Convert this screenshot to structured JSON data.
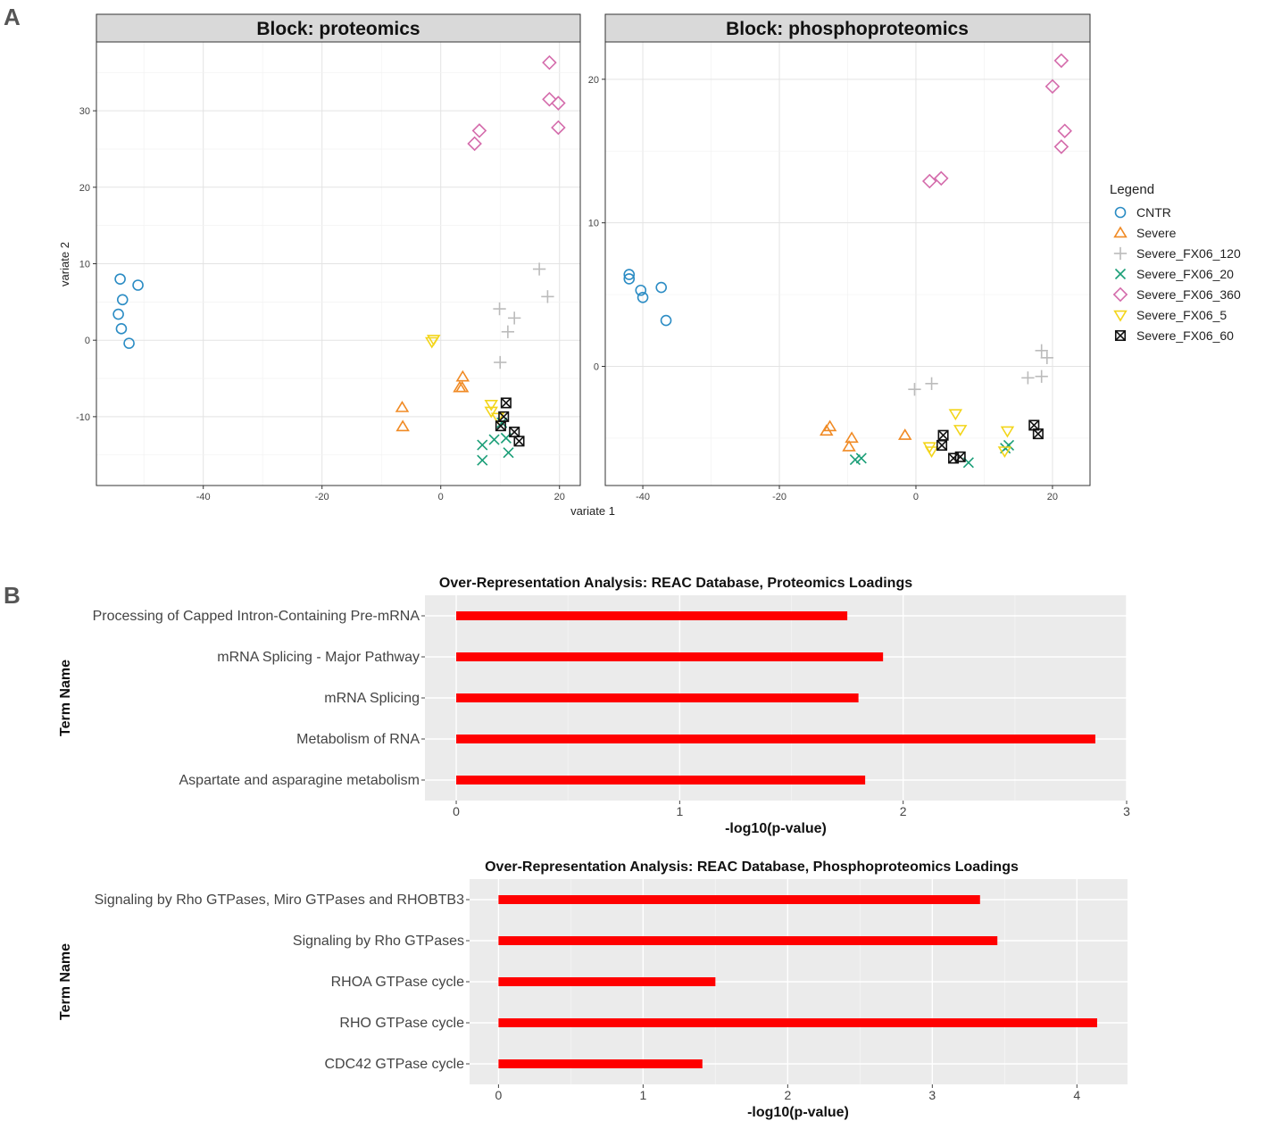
{
  "panel_labels": {
    "a": "A",
    "b": "B"
  },
  "chart_data": [
    {
      "type": "scatter",
      "title": "Block: proteomics",
      "xlabel": "variate 1",
      "ylabel": "variate 2",
      "xlim": [
        -58,
        23.5
      ],
      "ylim": [
        -19,
        39
      ],
      "xticks": [
        -40,
        -20,
        0,
        20
      ],
      "yticks": [
        -10,
        0,
        10,
        20,
        30
      ],
      "series": [
        {
          "name": "CNTR",
          "color": "#2b8cc4",
          "shape": "circle",
          "points": [
            [
              -54,
              8
            ],
            [
              -51,
              7.2
            ],
            [
              -53.6,
              5.3
            ],
            [
              -54.3,
              3.4
            ],
            [
              -53.8,
              1.5
            ],
            [
              -52.5,
              -0.4
            ]
          ]
        },
        {
          "name": "Severe",
          "color": "#f08a24",
          "shape": "triangle-up",
          "points": [
            [
              -6.5,
              -8.8
            ],
            [
              -6.4,
              -11.3
            ],
            [
              3.7,
              -4.8
            ],
            [
              3.2,
              -6.2
            ],
            [
              3.6,
              -6.2
            ]
          ]
        },
        {
          "name": "Severe_FX06_120",
          "color": "#bbbbbb",
          "shape": "plus",
          "points": [
            [
              16.6,
              9.3
            ],
            [
              18,
              5.7
            ],
            [
              9.9,
              4.1
            ],
            [
              12.4,
              2.9
            ],
            [
              11.3,
              1.1
            ],
            [
              10,
              -2.9
            ]
          ]
        },
        {
          "name": "Severe_FX06_20",
          "color": "#1a9e77",
          "shape": "cross",
          "points": [
            [
              7,
              -13.7
            ],
            [
              9,
              -13
            ],
            [
              7,
              -15.7
            ],
            [
              11,
              -12.8
            ],
            [
              11.4,
              -14.7
            ],
            [
              10.3,
              -10.8
            ]
          ]
        },
        {
          "name": "Severe_FX06_360",
          "color": "#d46bab",
          "shape": "diamond",
          "points": [
            [
              18.3,
              36.3
            ],
            [
              18.3,
              31.5
            ],
            [
              19.8,
              31
            ],
            [
              19.8,
              27.8
            ],
            [
              6.5,
              27.4
            ],
            [
              5.7,
              25.7
            ]
          ]
        },
        {
          "name": "Severe_FX06_5",
          "color": "#f3d51a",
          "shape": "triangle-down",
          "points": [
            [
              -1.5,
              -0.2
            ],
            [
              -1.2,
              0.1
            ],
            [
              8.5,
              -8.4
            ],
            [
              8.5,
              -9.3
            ],
            [
              9.6,
              -10.1
            ]
          ]
        },
        {
          "name": "Severe_FX06_60",
          "color": "#111111",
          "shape": "square-x",
          "points": [
            [
              11,
              -8.2
            ],
            [
              10.6,
              -10
            ],
            [
              10.1,
              -11.2
            ],
            [
              12.4,
              -12
            ],
            [
              13.2,
              -13.2
            ]
          ]
        }
      ]
    },
    {
      "type": "scatter",
      "title": "Block: phosphoproteomics",
      "xlabel": "variate 1",
      "ylabel": "variate 2",
      "xlim": [
        -45.5,
        25.5
      ],
      "ylim": [
        -8.3,
        22.6
      ],
      "xticks": [
        -40,
        -20,
        0,
        20
      ],
      "yticks": [
        0,
        10,
        20
      ],
      "series": [
        {
          "name": "CNTR",
          "color": "#2b8cc4",
          "shape": "circle",
          "points": [
            [
              -42,
              6.4
            ],
            [
              -42,
              6.1
            ],
            [
              -40.3,
              5.3
            ],
            [
              -40,
              4.8
            ],
            [
              -37.3,
              5.5
            ],
            [
              -36.6,
              3.2
            ]
          ]
        },
        {
          "name": "Severe",
          "color": "#f08a24",
          "shape": "triangle-up",
          "points": [
            [
              -12.6,
              -4.2
            ],
            [
              -13.1,
              -4.5
            ],
            [
              -9.4,
              -5
            ],
            [
              -9.8,
              -5.6
            ],
            [
              -1.6,
              -4.8
            ]
          ]
        },
        {
          "name": "Severe_FX06_120",
          "color": "#bbbbbb",
          "shape": "plus",
          "points": [
            [
              18.4,
              1.1
            ],
            [
              19.2,
              0.6
            ],
            [
              -0.2,
              -1.6
            ],
            [
              2.3,
              -1.2
            ],
            [
              16.4,
              -0.8
            ],
            [
              18.4,
              -0.7
            ]
          ]
        },
        {
          "name": "Severe_FX06_20",
          "color": "#1a9e77",
          "shape": "cross",
          "points": [
            [
              -8.9,
              -6.5
            ],
            [
              -8,
              -6.4
            ],
            [
              7.7,
              -6.7
            ],
            [
              13.1,
              -5.7
            ],
            [
              13.6,
              -5.5
            ]
          ]
        },
        {
          "name": "Severe_FX06_360",
          "color": "#d46bab",
          "shape": "diamond",
          "points": [
            [
              21.3,
              21.3
            ],
            [
              20,
              19.5
            ],
            [
              21.8,
              16.4
            ],
            [
              21.3,
              15.3
            ],
            [
              2,
              12.9
            ],
            [
              3.7,
              13.1
            ]
          ]
        },
        {
          "name": "Severe_FX06_5",
          "color": "#f3d51a",
          "shape": "triangle-down",
          "points": [
            [
              5.8,
              -3.3
            ],
            [
              6.5,
              -4.4
            ],
            [
              2,
              -5.6
            ],
            [
              2.3,
              -5.9
            ],
            [
              13.4,
              -4.5
            ],
            [
              13,
              -5.9
            ]
          ]
        },
        {
          "name": "Severe_FX06_60",
          "color": "#111111",
          "shape": "square-x",
          "points": [
            [
              17.3,
              -4.1
            ],
            [
              17.9,
              -4.7
            ],
            [
              4,
              -4.8
            ],
            [
              3.8,
              -5.5
            ],
            [
              5.5,
              -6.4
            ],
            [
              6.5,
              -6.3
            ]
          ]
        }
      ]
    },
    {
      "type": "bar",
      "orientation": "horizontal",
      "title": "Over-Representation Analysis: REAC Database,  Proteomics Loadings",
      "xlabel": "-log10(p-value)",
      "ylabel": "Term Name",
      "xlim": [
        -0.14,
        3.0
      ],
      "xticks": [
        0,
        1,
        2,
        3
      ],
      "bar_color": "#ff0000",
      "categories": [
        "Processing of Capped Intron-Containing Pre-mRNA",
        "mRNA Splicing - Major Pathway",
        "mRNA Splicing",
        "Metabolism of RNA",
        "Aspartate and asparagine metabolism"
      ],
      "values": [
        1.75,
        1.91,
        1.8,
        2.86,
        1.83
      ]
    },
    {
      "type": "bar",
      "orientation": "horizontal",
      "title": "Over-Representation Analysis: REAC Database,  Phosphoproteomics Loadings",
      "xlabel": "-log10(p-value)",
      "ylabel": "Term Name",
      "xlim": [
        -0.2,
        4.35
      ],
      "xticks": [
        0,
        1,
        2,
        3,
        4
      ],
      "bar_color": "#ff0000",
      "categories": [
        "Signaling by Rho GTPases, Miro GTPases and RHOBTB3",
        "Signaling by Rho GTPases",
        "RHOA GTPase cycle",
        "RHO GTPase cycle",
        "CDC42 GTPase cycle"
      ],
      "values": [
        3.33,
        3.45,
        1.5,
        4.14,
        1.41
      ]
    }
  ],
  "legend": {
    "title": "Legend",
    "entries": [
      "CNTR",
      "Severe",
      "Severe_FX06_120",
      "Severe_FX06_20",
      "Severe_FX06_360",
      "Severe_FX06_5",
      "Severe_FX06_60"
    ]
  }
}
